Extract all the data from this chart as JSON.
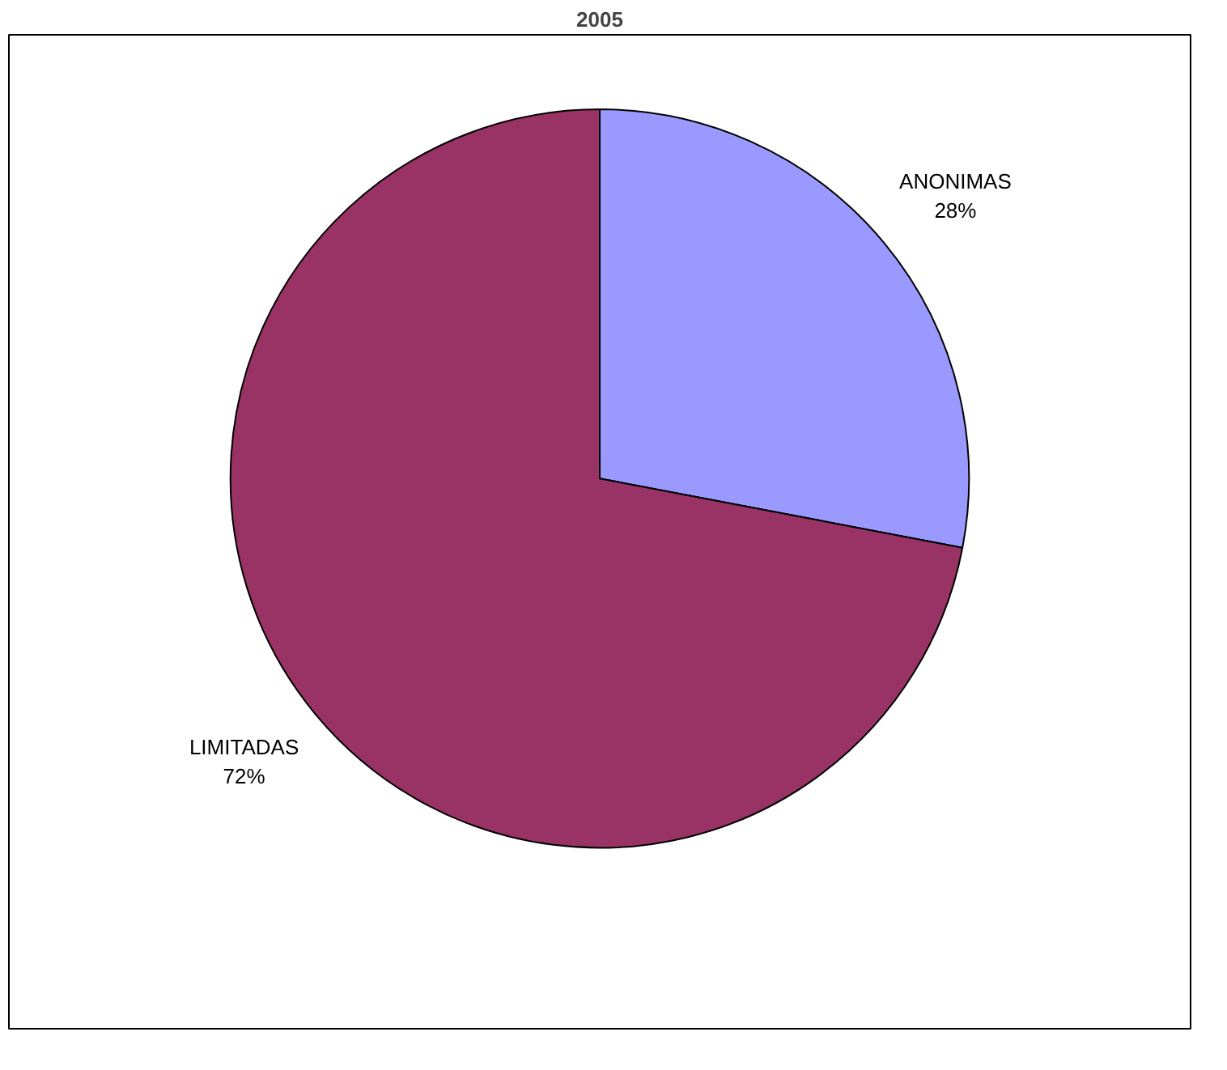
{
  "chart_data": {
    "type": "pie",
    "title": "2005",
    "categories": [
      "ANONIMAS",
      "LIMITADAS"
    ],
    "values": [
      28,
      72
    ],
    "colors": [
      "#9999ff",
      "#993366"
    ],
    "value_labels": [
      "28%",
      "72%"
    ]
  }
}
